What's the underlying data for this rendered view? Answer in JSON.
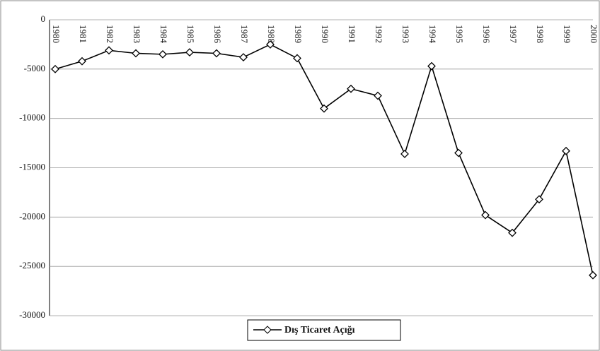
{
  "chart_data": {
    "type": "line",
    "categories": [
      "1980",
      "1981",
      "1982",
      "1983",
      "1984",
      "1985",
      "1986",
      "1987",
      "1988",
      "1989",
      "1990",
      "1991",
      "1992",
      "1993",
      "1994",
      "1995",
      "1996",
      "1997",
      "1998",
      "1999",
      "2000"
    ],
    "series": [
      {
        "name": "Dış Ticaret Açığı",
        "color": "#000000",
        "values": [
          -5000,
          -4200,
          -3100,
          -3400,
          -3500,
          -3300,
          -3400,
          -3800,
          -2500,
          -3900,
          -9000,
          -7000,
          -7700,
          -13600,
          -4700,
          -13500,
          -19800,
          -21600,
          -18200,
          -13300,
          -25900
        ]
      }
    ],
    "ylim": [
      -30000,
      0
    ],
    "yticks": [
      0,
      -5000,
      -10000,
      -15000,
      -20000,
      -25000,
      -30000
    ],
    "grid": true,
    "legend": "bottom"
  }
}
